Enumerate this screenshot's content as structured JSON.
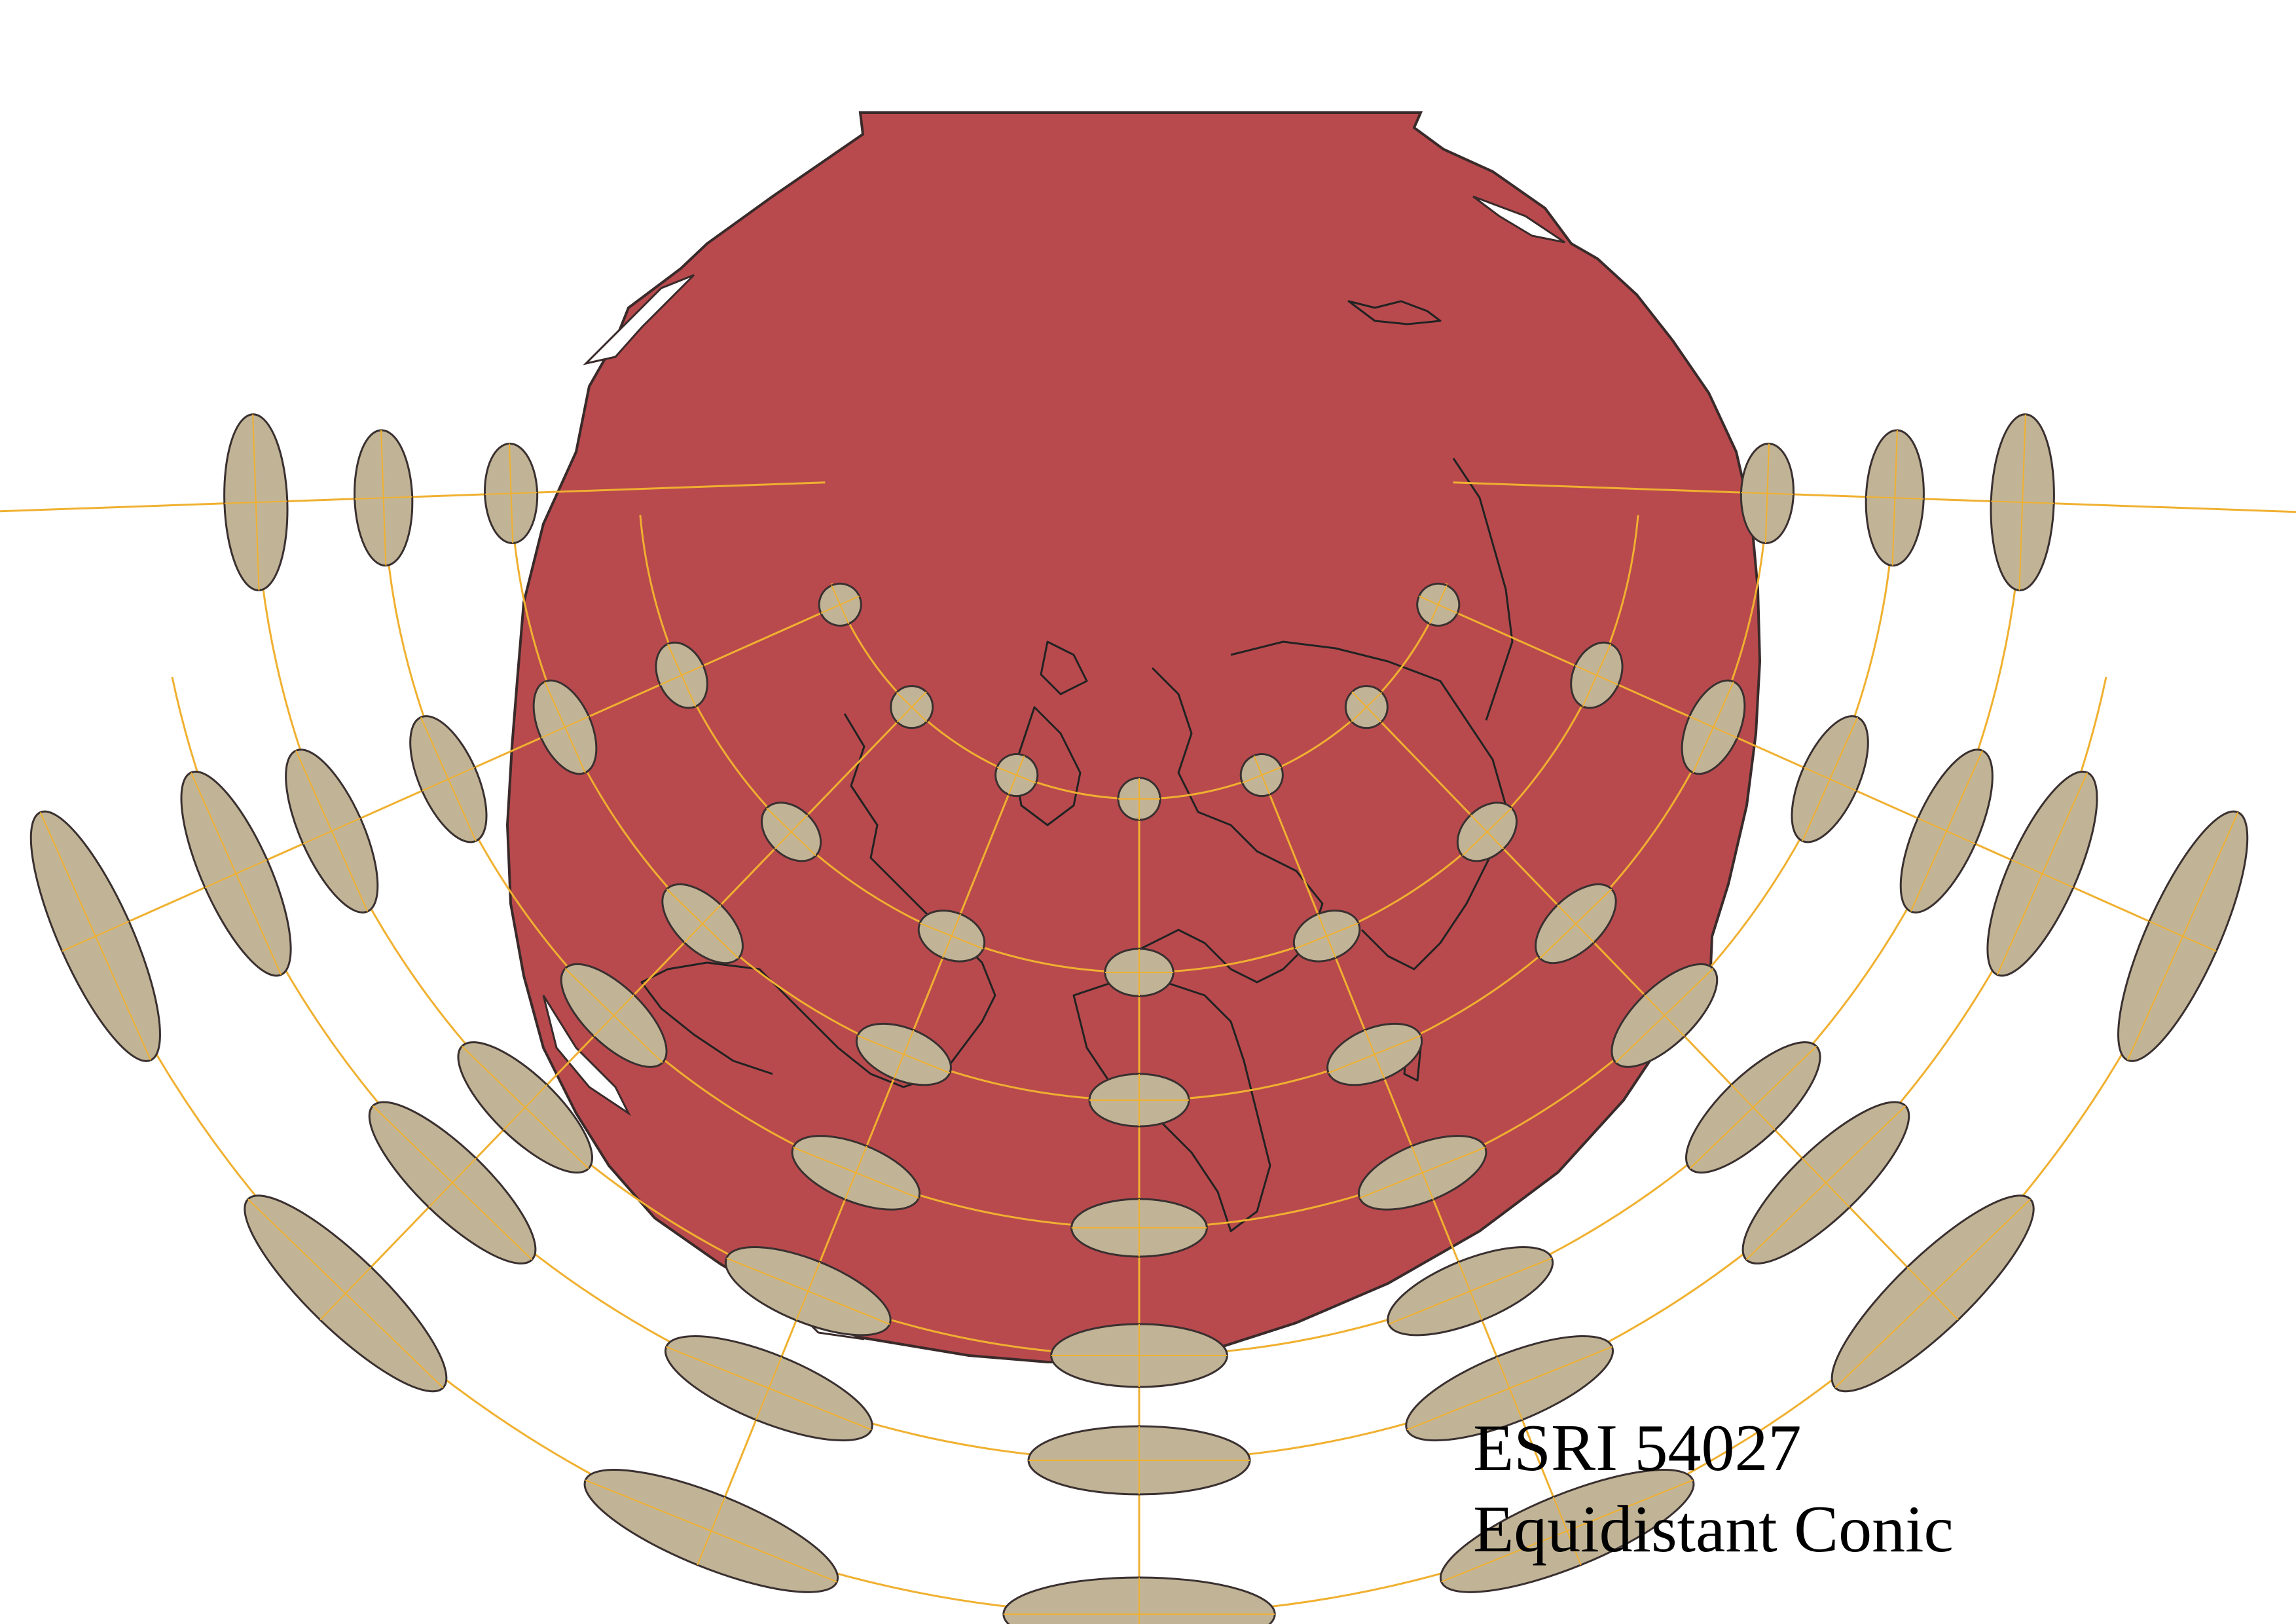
{
  "caption": {
    "code": "ESRI  54027",
    "name": "Equidistant Conic"
  },
  "colors": {
    "background": "#ffffff",
    "map_fill": "#b84a4e",
    "map_outline": "#3a2a2a",
    "graticule": "#f0b030",
    "indicatrix_fill": "#c1b496",
    "indicatrix_outline": "#3a3030",
    "coastline": "#222222"
  }
}
